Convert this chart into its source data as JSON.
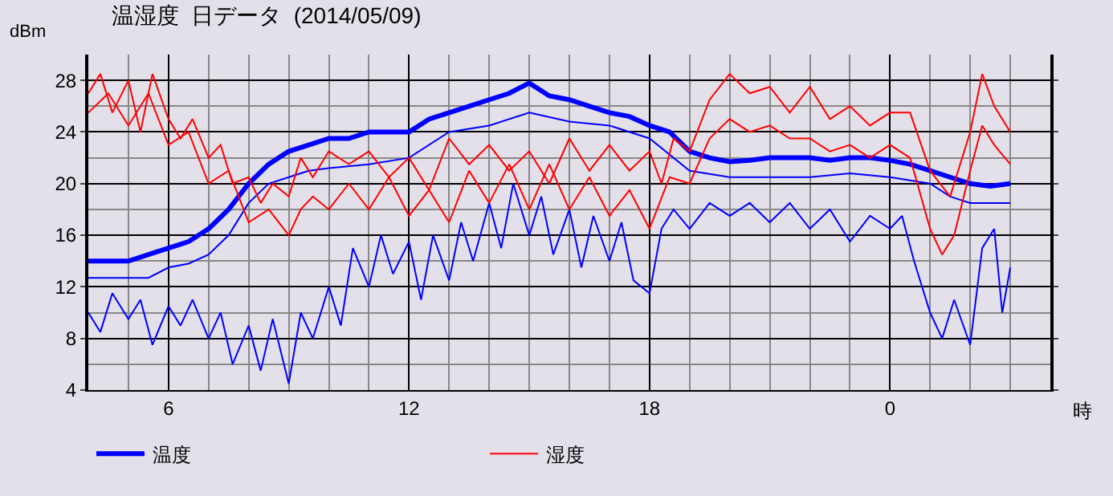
{
  "chart_data": {
    "type": "line",
    "title": "温湿度  日データ  (2014/05/09)",
    "ylabel": "dBm",
    "xlabel": "時",
    "xlim": [
      "2014-05-09T04:00",
      "2014-05-10T04:00"
    ],
    "xticks": [
      {
        "value": "2014-05-09T06:00",
        "label": "6"
      },
      {
        "value": "2014-05-09T12:00",
        "label": "12"
      },
      {
        "value": "2014-05-09T18:00",
        "label": "18"
      },
      {
        "value": "2014-05-10T00:00",
        "label": "0"
      }
    ],
    "ylim": [
      4,
      30
    ],
    "yticks": [
      4,
      8,
      12,
      16,
      20,
      24,
      28
    ],
    "grid": true,
    "legend": "bottom left",
    "marker": "none",
    "line_style": "solid",
    "series": [
      {
        "name": "温度",
        "color": "#0000ff",
        "x": [
          "2014-05-09T04:00",
          "2014-05-09T04:30",
          "2014-05-09T05:00",
          "2014-05-09T05:30",
          "2014-05-09T06:00",
          "2014-05-09T06:30",
          "2014-05-09T07:00",
          "2014-05-09T07:30",
          "2014-05-09T08:00",
          "2014-05-09T08:30",
          "2014-05-09T09:00",
          "2014-05-09T09:30",
          "2014-05-09T10:00",
          "2014-05-09T10:30",
          "2014-05-09T11:00",
          "2014-05-09T11:30",
          "2014-05-09T12:00",
          "2014-05-09T12:30",
          "2014-05-09T13:00",
          "2014-05-09T13:30",
          "2014-05-09T14:00",
          "2014-05-09T14:30",
          "2014-05-09T15:00",
          "2014-05-09T15:30",
          "2014-05-09T16:00",
          "2014-05-09T16:30",
          "2014-05-09T17:00",
          "2014-05-09T17:30",
          "2014-05-09T18:00",
          "2014-05-09T18:30",
          "2014-05-09T19:00",
          "2014-05-09T19:30",
          "2014-05-09T20:00",
          "2014-05-09T20:30",
          "2014-05-09T21:00",
          "2014-05-09T21:30",
          "2014-05-09T22:00",
          "2014-05-09T22:30",
          "2014-05-09T23:00",
          "2014-05-09T23:30",
          "2014-05-10T00:00",
          "2014-05-10T00:30",
          "2014-05-10T01:00",
          "2014-05-10T01:30",
          "2014-05-10T02:00",
          "2014-05-10T02:30",
          "2014-05-10T03:00"
        ],
        "values": [
          14,
          14,
          14,
          14.5,
          15,
          15.5,
          16.5,
          18,
          20,
          21.5,
          22.5,
          23,
          23.5,
          23.5,
          24,
          24,
          24,
          25,
          25.5,
          26,
          26.5,
          27,
          27.8,
          26.8,
          26.5,
          26,
          25.5,
          25.2,
          24.5,
          24,
          22.5,
          22,
          21.7,
          21.8,
          22,
          22,
          22,
          21.8,
          22,
          22,
          21.8,
          21.5,
          21,
          20.5,
          20,
          19.8,
          20
        ]
      },
      {
        "color": "#0000ff",
        "x": [
          "2014-05-09T04:00",
          "2014-05-09T05:00",
          "2014-05-09T05:30",
          "2014-05-09T06:00",
          "2014-05-09T06:30",
          "2014-05-09T07:00",
          "2014-05-09T07:30",
          "2014-05-09T08:00",
          "2014-05-09T08:30",
          "2014-05-09T09:00",
          "2014-05-09T09:30",
          "2014-05-09T10:00",
          "2014-05-09T11:00",
          "2014-05-09T12:00",
          "2014-05-09T13:00",
          "2014-05-09T14:00",
          "2014-05-09T15:00",
          "2014-05-09T16:00",
          "2014-05-09T17:00",
          "2014-05-09T18:00",
          "2014-05-09T19:00",
          "2014-05-09T20:00",
          "2014-05-09T21:00",
          "2014-05-09T22:00",
          "2014-05-09T23:00",
          "2014-05-10T00:00",
          "2014-05-10T01:00",
          "2014-05-10T01:30",
          "2014-05-10T02:00",
          "2014-05-10T03:00"
        ],
        "values": [
          12.7,
          12.7,
          12.7,
          13.5,
          13.8,
          14.5,
          16,
          18.5,
          20,
          20.5,
          21,
          21.2,
          21.5,
          22,
          24,
          24.5,
          25.5,
          24.8,
          24.5,
          23.5,
          21,
          20.5,
          20.5,
          20.5,
          20.8,
          20.5,
          20,
          19,
          18.5,
          18.5
        ]
      },
      {
        "color": "#0000ff",
        "x": [
          "2014-05-09T04:00",
          "2014-05-09T04:18",
          "2014-05-09T04:36",
          "2014-05-09T05:00",
          "2014-05-09T05:18",
          "2014-05-09T05:36",
          "2014-05-09T06:00",
          "2014-05-09T06:18",
          "2014-05-09T06:36",
          "2014-05-09T07:00",
          "2014-05-09T07:18",
          "2014-05-09T07:36",
          "2014-05-09T08:00",
          "2014-05-09T08:18",
          "2014-05-09T08:36",
          "2014-05-09T09:00",
          "2014-05-09T09:18",
          "2014-05-09T09:36",
          "2014-05-09T10:00",
          "2014-05-09T10:18",
          "2014-05-09T10:36",
          "2014-05-09T11:00",
          "2014-05-09T11:18",
          "2014-05-09T11:36",
          "2014-05-09T12:00",
          "2014-05-09T12:18",
          "2014-05-09T12:36",
          "2014-05-09T13:00",
          "2014-05-09T13:18",
          "2014-05-09T13:36",
          "2014-05-09T14:00",
          "2014-05-09T14:18",
          "2014-05-09T14:36",
          "2014-05-09T15:00",
          "2014-05-09T15:18",
          "2014-05-09T15:36",
          "2014-05-09T16:00",
          "2014-05-09T16:18",
          "2014-05-09T16:36",
          "2014-05-09T17:00",
          "2014-05-09T17:18",
          "2014-05-09T17:36",
          "2014-05-09T18:00",
          "2014-05-09T18:18",
          "2014-05-09T18:36",
          "2014-05-09T19:00",
          "2014-05-09T19:30",
          "2014-05-09T20:00",
          "2014-05-09T20:30",
          "2014-05-09T21:00",
          "2014-05-09T21:30",
          "2014-05-09T22:00",
          "2014-05-09T22:30",
          "2014-05-09T23:00",
          "2014-05-09T23:30",
          "2014-05-10T00:00",
          "2014-05-10T00:18",
          "2014-05-10T00:36",
          "2014-05-10T01:00",
          "2014-05-10T01:18",
          "2014-05-10T01:36",
          "2014-05-10T02:00",
          "2014-05-10T02:18",
          "2014-05-10T02:36",
          "2014-05-10T02:48",
          "2014-05-10T03:00"
        ],
        "values": [
          10,
          8.5,
          11.5,
          9.5,
          11,
          7.5,
          10.5,
          9,
          11,
          8,
          10,
          6,
          9,
          5.5,
          9.5,
          4.5,
          10,
          8,
          12,
          9,
          15,
          12,
          16,
          13,
          15.5,
          11,
          16,
          12.5,
          17,
          14,
          18.5,
          15,
          20,
          16,
          19,
          14.5,
          18,
          13.5,
          17.5,
          14,
          17,
          12.5,
          11.5,
          16.5,
          18,
          16.5,
          18.5,
          17.5,
          18.5,
          17,
          18.5,
          16.5,
          18,
          15.5,
          17.5,
          16.5,
          17.5,
          14,
          10,
          8,
          11,
          7.5,
          15,
          16.5,
          10,
          13.5
        ]
      },
      {
        "name": "湿度",
        "color": "#ff0000",
        "x": [
          "2014-05-09T04:00",
          "2014-05-09T04:18",
          "2014-05-09T04:36",
          "2014-05-09T05:00",
          "2014-05-09T05:18",
          "2014-05-09T05:36",
          "2014-05-09T06:00",
          "2014-05-09T06:18",
          "2014-05-09T06:36",
          "2014-05-09T07:00",
          "2014-05-09T07:18",
          "2014-05-09T07:36",
          "2014-05-09T08:00",
          "2014-05-09T08:18",
          "2014-05-09T08:36",
          "2014-05-09T09:00",
          "2014-05-09T09:18",
          "2014-05-09T09:36",
          "2014-05-09T10:00",
          "2014-05-09T10:30",
          "2014-05-09T11:00",
          "2014-05-09T11:30",
          "2014-05-09T12:00",
          "2014-05-09T12:30",
          "2014-05-09T13:00",
          "2014-05-09T13:30",
          "2014-05-09T14:00",
          "2014-05-09T14:30",
          "2014-05-09T15:00",
          "2014-05-09T15:30",
          "2014-05-09T16:00",
          "2014-05-09T16:30",
          "2014-05-09T17:00",
          "2014-05-09T17:30",
          "2014-05-09T18:00",
          "2014-05-09T18:18",
          "2014-05-09T18:36",
          "2014-05-09T19:00",
          "2014-05-09T19:30",
          "2014-05-09T20:00",
          "2014-05-09T20:30",
          "2014-05-09T21:00",
          "2014-05-09T21:30",
          "2014-05-09T22:00",
          "2014-05-09T22:30",
          "2014-05-09T23:00",
          "2014-05-09T23:30",
          "2014-05-10T00:00",
          "2014-05-10T00:30",
          "2014-05-10T01:00",
          "2014-05-10T01:30",
          "2014-05-10T02:00",
          "2014-05-10T02:18",
          "2014-05-10T02:36",
          "2014-05-10T03:00"
        ],
        "values": [
          27,
          28.5,
          25.5,
          28,
          24,
          28.5,
          25,
          23.5,
          25,
          22,
          23,
          20,
          20.5,
          18.5,
          20,
          19,
          22,
          20.5,
          22.5,
          21.5,
          22.5,
          20.5,
          22,
          19.5,
          23.5,
          21.5,
          23,
          21,
          22.5,
          20,
          23.5,
          21,
          23,
          21,
          22.5,
          20,
          23.5,
          22.5,
          26.5,
          28.5,
          27,
          27.5,
          25.5,
          27.5,
          25,
          26,
          24.5,
          25.5,
          25.5,
          21,
          19,
          24,
          28.5,
          26,
          24
        ]
      },
      {
        "color": "#ff0000",
        "x": [
          "2014-05-09T04:00",
          "2014-05-09T04:30",
          "2014-05-09T05:00",
          "2014-05-09T05:30",
          "2014-05-09T06:00",
          "2014-05-09T06:30",
          "2014-05-09T07:00",
          "2014-05-09T07:30",
          "2014-05-09T08:00",
          "2014-05-09T08:30",
          "2014-05-09T09:00",
          "2014-05-09T09:18",
          "2014-05-09T09:36",
          "2014-05-09T10:00",
          "2014-05-09T10:30",
          "2014-05-09T11:00",
          "2014-05-09T11:30",
          "2014-05-09T12:00",
          "2014-05-09T12:30",
          "2014-05-09T13:00",
          "2014-05-09T13:30",
          "2014-05-09T14:00",
          "2014-05-09T14:30",
          "2014-05-09T15:00",
          "2014-05-09T15:30",
          "2014-05-09T16:00",
          "2014-05-09T16:30",
          "2014-05-09T17:00",
          "2014-05-09T17:30",
          "2014-05-09T18:00",
          "2014-05-09T18:30",
          "2014-05-09T19:00",
          "2014-05-09T19:30",
          "2014-05-09T20:00",
          "2014-05-09T20:30",
          "2014-05-09T21:00",
          "2014-05-09T21:30",
          "2014-05-09T22:00",
          "2014-05-09T22:30",
          "2014-05-09T23:00",
          "2014-05-09T23:30",
          "2014-05-10T00:00",
          "2014-05-10T00:30",
          "2014-05-10T01:00",
          "2014-05-10T01:18",
          "2014-05-10T01:36",
          "2014-05-10T02:00",
          "2014-05-10T02:18",
          "2014-05-10T02:36",
          "2014-05-10T03:00"
        ],
        "values": [
          25.5,
          27,
          24.5,
          27,
          23,
          24,
          20,
          21,
          17,
          18,
          16,
          18,
          19,
          18,
          20,
          18,
          20.5,
          17.5,
          19.5,
          17,
          21,
          18.5,
          21.5,
          18,
          21.5,
          18,
          20.5,
          17.5,
          19.5,
          16.5,
          20.5,
          20,
          23.5,
          25,
          24,
          24.5,
          23.5,
          23.5,
          22.5,
          23,
          22,
          23,
          22,
          16.5,
          14.5,
          16,
          21,
          24.5,
          23,
          21.5
        ]
      }
    ]
  }
}
